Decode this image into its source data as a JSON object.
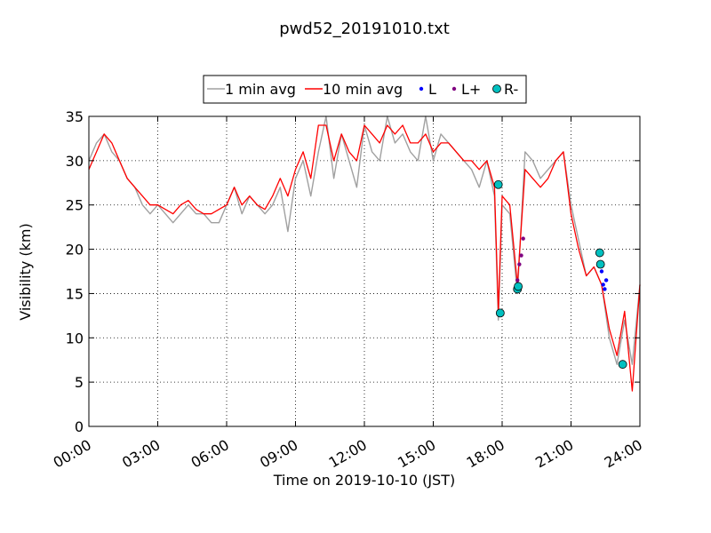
{
  "chart_data": {
    "type": "line",
    "title": "pwd52_20191010.txt",
    "xlabel": "Time on 2019-10-10 (JST)",
    "ylabel": "Visibility (km)",
    "xlim": [
      "00:00",
      "24:00"
    ],
    "ylim": [
      0,
      35
    ],
    "grid": true,
    "legend_position": "top-center",
    "x_ticks": [
      "00:00",
      "03:00",
      "06:00",
      "09:00",
      "12:00",
      "15:00",
      "18:00",
      "21:00",
      "24:00"
    ],
    "y_ticks": [
      "0",
      "5",
      "10",
      "15",
      "20",
      "25",
      "30",
      "35"
    ],
    "series": [
      {
        "name": "1 min avg",
        "kind": "line",
        "color": "#a0a0a0",
        "x": [
          "00:00",
          "00:20",
          "00:40",
          "01:00",
          "01:20",
          "01:40",
          "02:00",
          "02:20",
          "02:40",
          "03:00",
          "03:20",
          "03:40",
          "04:00",
          "04:20",
          "04:40",
          "05:00",
          "05:20",
          "05:40",
          "06:00",
          "06:20",
          "06:40",
          "07:00",
          "07:20",
          "07:40",
          "08:00",
          "08:20",
          "08:40",
          "09:00",
          "09:20",
          "09:40",
          "10:00",
          "10:20",
          "10:40",
          "11:00",
          "11:20",
          "11:40",
          "12:00",
          "12:20",
          "12:40",
          "13:00",
          "13:20",
          "13:40",
          "14:00",
          "14:20",
          "14:40",
          "15:00",
          "15:20",
          "15:40",
          "16:00",
          "16:20",
          "16:40",
          "17:00",
          "17:20",
          "17:40",
          "17:50",
          "18:00",
          "18:20",
          "18:40",
          "19:00",
          "19:20",
          "19:40",
          "20:00",
          "20:20",
          "20:40",
          "21:00",
          "21:20",
          "21:40",
          "22:00",
          "22:20",
          "22:40",
          "23:00",
          "23:20",
          "23:40",
          "24:00"
        ],
        "y": [
          30,
          32,
          33,
          31,
          30,
          28,
          27,
          25,
          24,
          25,
          24,
          23,
          24,
          25,
          24,
          24,
          23,
          23,
          25,
          27,
          24,
          26,
          25,
          24,
          25,
          27,
          22,
          28,
          30,
          26,
          31,
          35,
          28,
          33,
          30,
          27,
          34,
          31,
          30,
          35,
          32,
          33,
          31,
          30,
          35,
          30,
          33,
          32,
          31,
          30,
          29,
          27,
          30,
          26,
          12,
          25,
          24,
          15,
          31,
          30,
          28,
          29,
          30,
          31,
          25,
          21,
          17,
          18,
          16,
          10,
          7,
          12,
          7,
          16
        ]
      },
      {
        "name": "10 min avg",
        "kind": "line",
        "color": "#ff0000",
        "x": [
          "00:00",
          "00:20",
          "00:40",
          "01:00",
          "01:20",
          "01:40",
          "02:00",
          "02:20",
          "02:40",
          "03:00",
          "03:20",
          "03:40",
          "04:00",
          "04:20",
          "04:40",
          "05:00",
          "05:20",
          "05:40",
          "06:00",
          "06:20",
          "06:40",
          "07:00",
          "07:20",
          "07:40",
          "08:00",
          "08:20",
          "08:40",
          "09:00",
          "09:20",
          "09:40",
          "10:00",
          "10:20",
          "10:40",
          "11:00",
          "11:20",
          "11:40",
          "12:00",
          "12:20",
          "12:40",
          "13:00",
          "13:20",
          "13:40",
          "14:00",
          "14:20",
          "14:40",
          "15:00",
          "15:20",
          "15:40",
          "16:00",
          "16:20",
          "16:40",
          "17:00",
          "17:20",
          "17:40",
          "17:50",
          "18:00",
          "18:20",
          "18:40",
          "19:00",
          "19:20",
          "19:40",
          "20:00",
          "20:20",
          "20:40",
          "21:00",
          "21:20",
          "21:40",
          "22:00",
          "22:20",
          "22:40",
          "23:00",
          "23:20",
          "23:40",
          "24:00"
        ],
        "y": [
          29,
          31,
          33,
          32,
          30,
          28,
          27,
          26,
          25,
          25,
          24.5,
          24,
          25,
          25.5,
          24.5,
          24,
          24,
          24.5,
          25,
          27,
          25,
          26,
          25,
          24.5,
          26,
          28,
          26,
          29,
          31,
          28,
          34,
          34,
          30,
          33,
          31,
          30,
          34,
          33,
          32,
          34,
          33,
          34,
          32,
          32,
          33,
          31,
          32,
          32,
          31,
          30,
          30,
          29,
          30,
          27,
          13,
          26,
          25,
          16,
          29,
          28,
          27,
          28,
          30,
          31,
          24,
          20,
          17,
          18,
          16,
          11,
          8,
          13,
          4,
          16
        ]
      },
      {
        "name": "L",
        "kind": "scatter",
        "color": "#0000ff",
        "x": [
          "22:20",
          "22:24",
          "22:28",
          "22:32"
        ],
        "y": [
          17.5,
          16,
          15.5,
          16.5
        ]
      },
      {
        "name": "L+",
        "kind": "scatter",
        "color": "#800080",
        "x": [
          "18:40",
          "18:45",
          "18:50",
          "18:55"
        ],
        "y": [
          16.5,
          18.3,
          19.3,
          21.2
        ]
      },
      {
        "name": "R-",
        "kind": "scatter",
        "color": "#00c0c0",
        "x": [
          "17:50",
          "17:55",
          "18:40",
          "18:42",
          "22:15",
          "22:17",
          "23:15"
        ],
        "y": [
          27.3,
          12.8,
          15.5,
          15.8,
          19.6,
          18.3,
          7
        ]
      }
    ]
  }
}
